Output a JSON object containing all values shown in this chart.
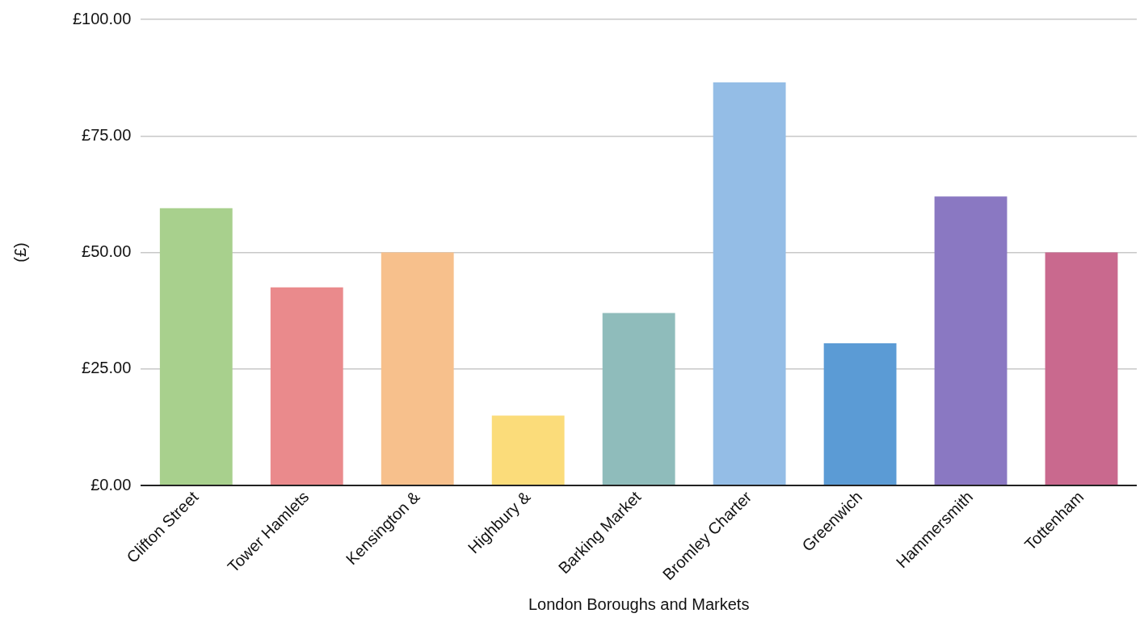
{
  "chart_data": {
    "type": "bar",
    "xlabel": "London Boroughs and Markets",
    "ylabel": "(£)",
    "categories": [
      "Clifton Street",
      "Tower Hamlets",
      "Kensington &",
      "Highbury &",
      "Barking Market",
      "Bromley Charter",
      "Greenwich",
      "Hammersmith",
      "Tottenham"
    ],
    "values": [
      59.5,
      42.5,
      50,
      15,
      37,
      86.5,
      30.5,
      62,
      50
    ],
    "colors": [
      "#a8d08d",
      "#ea8a8c",
      "#f7c08c",
      "#fbdc7a",
      "#8fbcbb",
      "#94bde6",
      "#5b9bd5",
      "#8a78c2",
      "#c9698e"
    ],
    "ylim": [
      0,
      100
    ],
    "yticks": [
      {
        "value": 0,
        "label": "£0.00"
      },
      {
        "value": 25,
        "label": "£25.00"
      },
      {
        "value": 50,
        "label": "£50.00"
      },
      {
        "value": 75,
        "label": "£75.00"
      },
      {
        "value": 100,
        "label": "£100.00"
      }
    ],
    "grid": "y",
    "legend": false
  }
}
